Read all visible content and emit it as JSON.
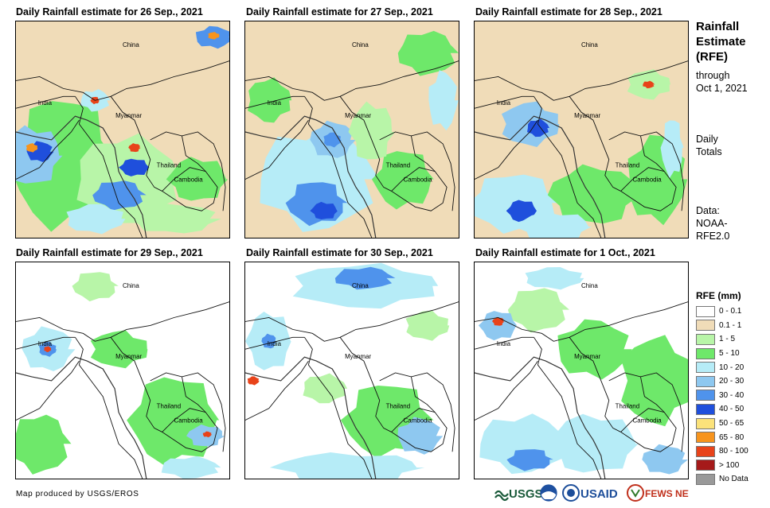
{
  "panels": [
    {
      "title": "Daily Rainfall estimate for 26 Sep., 2021"
    },
    {
      "title": "Daily Rainfall estimate for 27 Sep., 2021"
    },
    {
      "title": "Daily Rainfall estimate for 28 Sep., 2021"
    },
    {
      "title": "Daily Rainfall estimate for 29 Sep., 2021"
    },
    {
      "title": "Daily Rainfall estimate for 30 Sep., 2021"
    },
    {
      "title": "Daily Rainfall estimate for 1 Oct., 2021"
    }
  ],
  "map_labels": {
    "china": "China",
    "india": "India",
    "myanmar": "Myanmar",
    "thailand": "Thailand",
    "cambodia": "Cambodia"
  },
  "sidebar": {
    "title_line1": "Rainfall",
    "title_line2": "Estimate",
    "title_line3": "(RFE)",
    "through": "through",
    "through_date": "Oct 1, 2021",
    "daily": "Daily",
    "totals": "Totals",
    "data_label": "Data:",
    "data_source_1": "NOAA-",
    "data_source_2": "RFE2.0"
  },
  "legend": {
    "title": "RFE (mm)",
    "items": [
      {
        "label": "0 - 0.1",
        "color": "#ffffff"
      },
      {
        "label": "0.1 - 1",
        "color": "#f0dcb8"
      },
      {
        "label": "1 - 5",
        "color": "#b8f5a8"
      },
      {
        "label": "5 - 10",
        "color": "#6ee86a"
      },
      {
        "label": "10 - 20",
        "color": "#b6ecf7"
      },
      {
        "label": "20 - 30",
        "color": "#8ec8f0"
      },
      {
        "label": "30 - 40",
        "color": "#4f93ec"
      },
      {
        "label": "40 - 50",
        "color": "#1f4fdc"
      },
      {
        "label": "50 - 65",
        "color": "#fbe27a"
      },
      {
        "label": "65 - 80",
        "color": "#f7941d"
      },
      {
        "label": "80 - 100",
        "color": "#e8431a"
      },
      {
        "label": "> 100",
        "color": "#a51a1a"
      },
      {
        "label": "No Data",
        "color": "#999999"
      }
    ]
  },
  "footer": {
    "credit": "Map produced by USGS/EROS"
  },
  "logos": {
    "usgs": "USGS",
    "usaid": "USAID",
    "fewsnet": "FEWS NET"
  }
}
